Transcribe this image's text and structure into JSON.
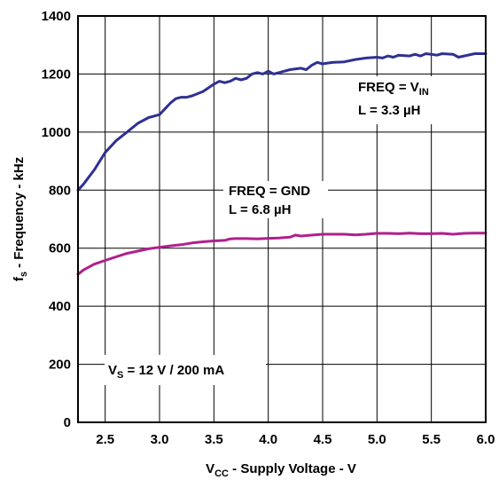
{
  "chart_data": {
    "type": "line",
    "xlabel": {
      "main": "V",
      "sub": "CC",
      "rest": " - Supply Voltage - V"
    },
    "ylabel": {
      "main": "f",
      "sub": "s",
      "rest": " - Frequency - kHz"
    },
    "xlim": [
      2.25,
      6.0
    ],
    "ylim": [
      0,
      1400
    ],
    "x_ticks": [
      {
        "value": 2.5,
        "label": "2.5"
      },
      {
        "value": 3.0,
        "label": "3.0"
      },
      {
        "value": 3.5,
        "label": "3.5"
      },
      {
        "value": 4.0,
        "label": "4.0"
      },
      {
        "value": 4.5,
        "label": "4.5"
      },
      {
        "value": 5.0,
        "label": "5.0"
      },
      {
        "value": 5.5,
        "label": "5.5"
      },
      {
        "value": 6.0,
        "label": "6.0"
      }
    ],
    "y_ticks": [
      {
        "value": 0,
        "label": "0"
      },
      {
        "value": 200,
        "label": "200"
      },
      {
        "value": 400,
        "label": "400"
      },
      {
        "value": 600,
        "label": "600"
      },
      {
        "value": 800,
        "label": "800"
      },
      {
        "value": 1000,
        "label": "1000"
      },
      {
        "value": 1200,
        "label": "1200"
      },
      {
        "value": 1400,
        "label": "1400"
      }
    ],
    "grid": true,
    "series": [
      {
        "color": "#2e3192",
        "x": [
          2.25,
          2.3,
          2.4,
          2.5,
          2.6,
          2.7,
          2.8,
          2.9,
          3.0,
          3.05,
          3.1,
          3.15,
          3.2,
          3.25,
          3.3,
          3.4,
          3.5,
          3.55,
          3.6,
          3.65,
          3.7,
          3.75,
          3.8,
          3.85,
          3.9,
          3.95,
          4.0,
          4.05,
          4.1,
          4.2,
          4.3,
          4.35,
          4.4,
          4.45,
          4.5,
          4.55,
          4.6,
          4.7,
          4.8,
          4.9,
          5.0,
          5.05,
          5.1,
          5.15,
          5.2,
          5.3,
          5.35,
          5.4,
          5.45,
          5.5,
          5.55,
          5.6,
          5.7,
          5.75,
          5.8,
          5.9,
          6.0
        ],
        "values": [
          800,
          820,
          870,
          930,
          970,
          1000,
          1030,
          1050,
          1060,
          1080,
          1100,
          1115,
          1120,
          1120,
          1125,
          1140,
          1165,
          1175,
          1170,
          1175,
          1185,
          1180,
          1185,
          1200,
          1205,
          1200,
          1210,
          1200,
          1205,
          1215,
          1220,
          1215,
          1230,
          1240,
          1235,
          1238,
          1240,
          1242,
          1250,
          1255,
          1258,
          1255,
          1262,
          1258,
          1265,
          1262,
          1268,
          1262,
          1270,
          1268,
          1265,
          1270,
          1268,
          1258,
          1262,
          1270,
          1270
        ]
      },
      {
        "color": "#b01f8e",
        "x": [
          2.25,
          2.3,
          2.4,
          2.5,
          2.6,
          2.7,
          2.8,
          2.9,
          3.0,
          3.1,
          3.2,
          3.3,
          3.4,
          3.5,
          3.6,
          3.65,
          3.7,
          3.8,
          3.9,
          4.0,
          4.1,
          4.2,
          4.25,
          4.3,
          4.4,
          4.5,
          4.6,
          4.7,
          4.8,
          4.9,
          5.0,
          5.1,
          5.2,
          5.3,
          5.4,
          5.5,
          5.6,
          5.7,
          5.8,
          5.9,
          6.0
        ],
        "values": [
          510,
          525,
          545,
          558,
          570,
          582,
          590,
          598,
          603,
          608,
          612,
          618,
          622,
          625,
          627,
          632,
          633,
          633,
          632,
          634,
          635,
          638,
          645,
          642,
          645,
          648,
          648,
          648,
          646,
          648,
          651,
          651,
          650,
          652,
          650,
          650,
          651,
          648,
          651,
          652,
          652
        ]
      }
    ],
    "annotations": {
      "freq_vin": {
        "line1": "FREQ = V",
        "line1_sub": "IN",
        "line2": "L = 3.3 µH"
      },
      "freq_gnd": {
        "line1": "FREQ = GND",
        "line2": "L = 6.8 µH"
      },
      "vs": {
        "main": "V",
        "sub": "S",
        "rest": " = 12 V / 200 mA"
      }
    }
  }
}
